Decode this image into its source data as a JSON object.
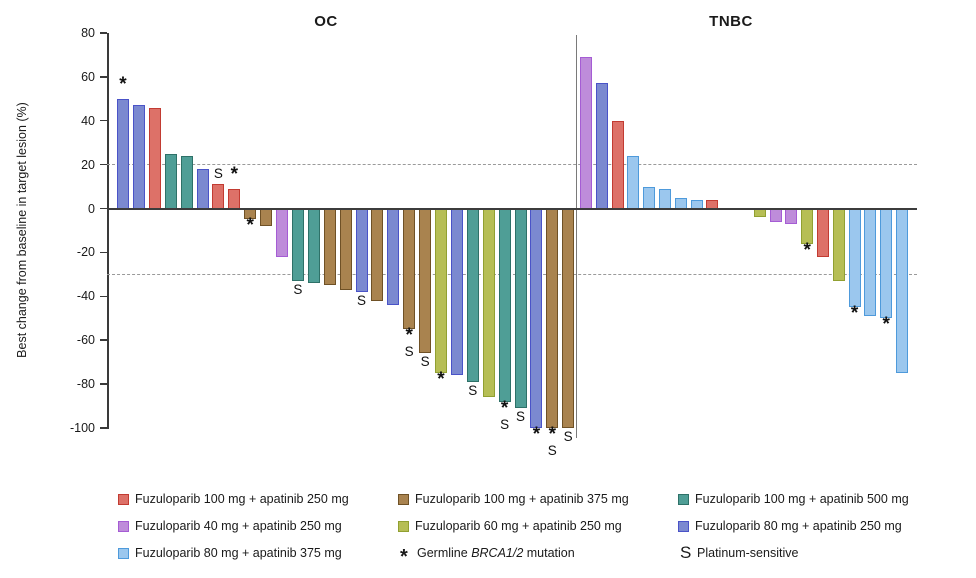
{
  "chart_data": {
    "type": "bar",
    "ylabel": "Best change from baseline in target lesion (%)",
    "ylim": [
      -100,
      80
    ],
    "yticks": [
      80,
      60,
      40,
      20,
      0,
      -20,
      -40,
      -60,
      -80,
      -100
    ],
    "ytick_labels": [
      "80",
      "60",
      "40",
      "20",
      "0",
      "-20",
      "-40",
      "-60",
      "-80",
      "-100"
    ],
    "reference_lines": [
      20,
      -30
    ],
    "grid": "dashed-reference-lines-only",
    "legend_position": "bottom",
    "series": [
      {
        "key": "r",
        "label": "Fuzuloparib 100 mg + apatinib 250 mg",
        "fill": "#DD7168",
        "border": "#C23B32"
      },
      {
        "key": "p",
        "label": "Fuzuloparib 40 mg + apatinib 250 mg",
        "fill": "#BE8CDA",
        "border": "#A55CD4"
      },
      {
        "key": "lb",
        "label": "Fuzuloparib 80 mg + apatinib 375 mg",
        "fill": "#9BC7EE",
        "border": "#4E9ADB"
      },
      {
        "key": "br",
        "label": "Fuzuloparib 100 mg + apatinib 375 mg",
        "fill": "#A9834F",
        "border": "#6F5126"
      },
      {
        "key": "yg",
        "label": "Fuzuloparib 60 mg + apatinib 250 mg",
        "fill": "#B6BE55",
        "border": "#91A031"
      },
      {
        "key": "t",
        "label": "Fuzuloparib 100 mg + apatinib 500 mg",
        "fill": "#4F9E96",
        "border": "#2E7168"
      },
      {
        "key": "b",
        "label": "Fuzuloparib 80 mg + apatinib 250 mg",
        "fill": "#7B89D0",
        "border": "#4A53C8"
      }
    ],
    "markers": [
      {
        "id": "brca",
        "glyph": "*",
        "label_pre": "Germline ",
        "label_italic": "BRCA1/2",
        "label_post": " mutation"
      },
      {
        "id": "plat",
        "glyph": "S",
        "label_pre": "Platinum-sensitive",
        "label_italic": "",
        "label_post": ""
      }
    ],
    "legend_columns": [
      [
        "series:r",
        "series:p",
        "series:lb"
      ],
      [
        "series:br",
        "series:yg",
        "marker:brca"
      ],
      [
        "series:t",
        "series:b",
        "marker:plat"
      ]
    ],
    "groups": [
      {
        "label": "OC",
        "bars": [
          {
            "slot": 0,
            "series": "b",
            "value": 50,
            "marks": [
              "*"
            ]
          },
          {
            "slot": 1,
            "series": "b",
            "value": 47,
            "marks": []
          },
          {
            "slot": 2,
            "series": "r",
            "value": 46,
            "marks": []
          },
          {
            "slot": 3,
            "series": "t",
            "value": 25,
            "marks": []
          },
          {
            "slot": 4,
            "series": "t",
            "value": 24,
            "marks": []
          },
          {
            "slot": 5,
            "series": "b",
            "value": 18,
            "marks": []
          },
          {
            "slot": 6,
            "series": "r",
            "value": 11,
            "marks": [
              "S"
            ]
          },
          {
            "slot": 7,
            "series": "r",
            "value": 9,
            "marks": [
              "*"
            ]
          },
          {
            "slot": 8,
            "series": "br",
            "value": -5,
            "marks": [
              "*"
            ]
          },
          {
            "slot": 9,
            "series": "br",
            "value": -8,
            "marks": []
          },
          {
            "slot": 10,
            "series": "p",
            "value": -22,
            "marks": []
          },
          {
            "slot": 11,
            "series": "t",
            "value": -33,
            "marks": [
              "S"
            ]
          },
          {
            "slot": 12,
            "series": "t",
            "value": -34,
            "marks": []
          },
          {
            "slot": 13,
            "series": "br",
            "value": -35,
            "marks": []
          },
          {
            "slot": 14,
            "series": "br",
            "value": -37,
            "marks": []
          },
          {
            "slot": 15,
            "series": "b",
            "value": -38,
            "marks": [
              "S"
            ]
          },
          {
            "slot": 16,
            "series": "br",
            "value": -42,
            "marks": []
          },
          {
            "slot": 17,
            "series": "b",
            "value": -44,
            "marks": []
          },
          {
            "slot": 18,
            "series": "br",
            "value": -55,
            "marks": [
              "*",
              "S"
            ]
          },
          {
            "slot": 19,
            "series": "br",
            "value": -66,
            "marks": [
              "S"
            ]
          },
          {
            "slot": 20,
            "series": "yg",
            "value": -75,
            "marks": [
              "*"
            ]
          },
          {
            "slot": 21,
            "series": "b",
            "value": -76,
            "marks": []
          },
          {
            "slot": 22,
            "series": "t",
            "value": -79,
            "marks": [
              "S"
            ]
          },
          {
            "slot": 23,
            "series": "yg",
            "value": -86,
            "marks": []
          },
          {
            "slot": 24,
            "series": "t",
            "value": -88,
            "marks": [
              "*",
              "S"
            ]
          },
          {
            "slot": 25,
            "series": "t",
            "value": -91,
            "marks": [
              "S"
            ]
          },
          {
            "slot": 26,
            "series": "b",
            "value": -100,
            "marks": [
              "*"
            ]
          },
          {
            "slot": 27,
            "series": "br",
            "value": -100,
            "marks": [
              "*",
              "S"
            ]
          },
          {
            "slot": 28,
            "series": "br",
            "value": -100,
            "marks": [
              "S"
            ]
          }
        ]
      },
      {
        "label": "TNBC",
        "bars": [
          {
            "slot": 0,
            "series": "p",
            "value": 69,
            "marks": []
          },
          {
            "slot": 1,
            "series": "b",
            "value": 57,
            "marks": []
          },
          {
            "slot": 2,
            "series": "r",
            "value": 40,
            "marks": []
          },
          {
            "slot": 3,
            "series": "lb",
            "value": 24,
            "marks": []
          },
          {
            "slot": 4,
            "series": "lb",
            "value": 10,
            "marks": []
          },
          {
            "slot": 5,
            "series": "lb",
            "value": 9,
            "marks": []
          },
          {
            "slot": 6,
            "series": "lb",
            "value": 5,
            "marks": []
          },
          {
            "slot": 7,
            "series": "lb",
            "value": 4,
            "marks": []
          },
          {
            "slot": 8,
            "series": "r",
            "value": 4,
            "marks": []
          },
          {
            "slot": 11,
            "series": "yg",
            "value": -4,
            "marks": []
          },
          {
            "slot": 12,
            "series": "p",
            "value": -6,
            "marks": []
          },
          {
            "slot": 13,
            "series": "p",
            "value": -7,
            "marks": []
          },
          {
            "slot": 14,
            "series": "yg",
            "value": -16,
            "marks": [
              "*"
            ]
          },
          {
            "slot": 15,
            "series": "r",
            "value": -22,
            "marks": []
          },
          {
            "slot": 16,
            "series": "yg",
            "value": -33,
            "marks": []
          },
          {
            "slot": 17,
            "series": "lb",
            "value": -45,
            "marks": [
              "*"
            ]
          },
          {
            "slot": 18,
            "series": "lb",
            "value": -49,
            "marks": []
          },
          {
            "slot": 19,
            "series": "lb",
            "value": -50,
            "marks": [
              "*"
            ]
          },
          {
            "slot": 20,
            "series": "lb",
            "value": -75,
            "marks": []
          }
        ]
      }
    ]
  }
}
